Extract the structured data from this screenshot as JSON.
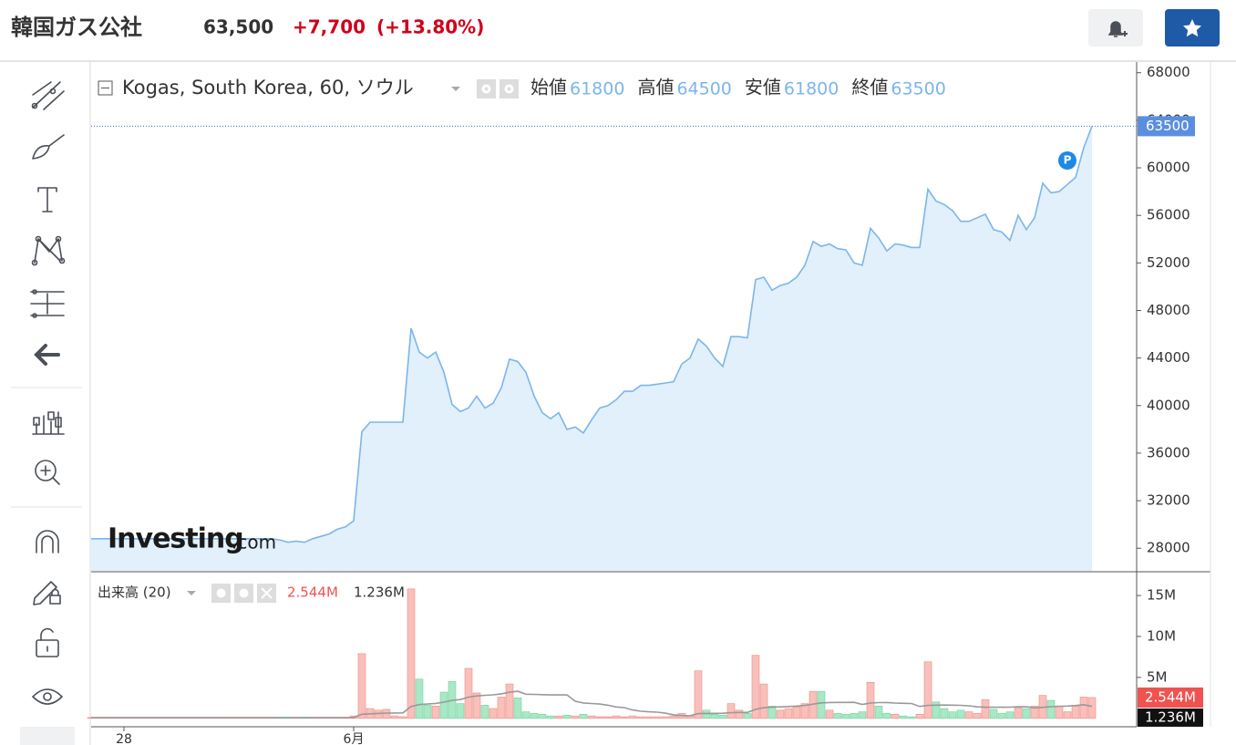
{
  "header": {
    "name": "韓国ガス公社",
    "price": "63,500",
    "change": "+7,700",
    "change_pct": "(+13.80%)"
  },
  "watermark": {
    "brand": "Investing",
    "suffix": ".com"
  },
  "chart_data": {
    "type": "area",
    "title": "Kogas, South Korea, 60, ソウル",
    "ohlc": [
      {
        "label": "始値",
        "value": 61800
      },
      {
        "label": "高値",
        "value": 64500
      },
      {
        "label": "安値",
        "value": 61800
      },
      {
        "label": "終値",
        "value": 63500
      }
    ],
    "marker_label": "P",
    "color": "#7cb5ec",
    "fill": "#e1f0fa",
    "categories": [
      null,
      null,
      null,
      null,
      "28",
      null,
      null,
      null,
      null,
      null,
      null,
      null,
      null,
      null,
      null,
      null,
      null,
      null,
      null,
      null,
      null,
      null,
      null,
      null,
      null,
      null,
      null,
      null,
      null,
      null,
      null,
      null,
      "6月",
      null,
      null,
      null,
      null,
      null,
      null,
      null,
      null,
      null,
      null,
      null,
      null,
      null,
      null,
      null,
      null,
      null,
      null,
      null,
      null,
      null,
      null,
      null,
      null,
      null,
      null,
      null,
      null,
      null,
      null,
      null,
      null,
      null,
      null,
      null,
      null,
      null,
      null,
      null,
      null,
      null,
      null,
      null,
      null,
      null,
      null,
      null,
      null,
      null,
      null,
      null,
      null,
      null,
      null,
      null,
      null,
      null,
      null,
      null,
      null,
      null,
      null,
      null,
      null,
      null,
      null,
      null,
      null,
      null,
      null,
      null,
      null,
      null,
      null,
      null,
      null,
      null,
      null,
      null,
      null,
      null,
      null,
      null,
      null,
      null,
      null,
      null,
      null,
      null,
      null
    ],
    "values": [
      28800,
      28800,
      28800,
      28800,
      28800,
      28800,
      28800,
      28800,
      28800,
      28800,
      28800,
      28800,
      28800,
      28800,
      28800,
      28800,
      28800,
      28800,
      28800,
      28800,
      28800,
      28800,
      28800,
      28700,
      28500,
      28600,
      28500,
      28800,
      29000,
      29200,
      29600,
      29800,
      30300,
      37800,
      38600,
      38600,
      38600,
      38600,
      38600,
      46500,
      44500,
      44000,
      44500,
      42800,
      40100,
      39500,
      39800,
      40800,
      39800,
      40200,
      41500,
      43900,
      43700,
      42800,
      40800,
      39400,
      38900,
      39400,
      38000,
      38200,
      37700,
      38800,
      39800,
      40000,
      40500,
      41200,
      41200,
      41700,
      41700,
      41800,
      41900,
      42000,
      43500,
      44000,
      45600,
      45000,
      44000,
      43300,
      45800,
      45800,
      45700,
      50600,
      50800,
      49700,
      50100,
      50300,
      50800,
      51800,
      53800,
      53400,
      53600,
      53200,
      53100,
      52000,
      51800,
      54900,
      54100,
      53000,
      53600,
      53500,
      53300,
      53300,
      58200,
      57200,
      56900,
      56400,
      55500,
      55500,
      55800,
      56100,
      54800,
      54600,
      53900,
      56000,
      54800,
      55800,
      58700,
      57900,
      58000,
      58600,
      59200,
      61700,
      63500
    ],
    "ylim": [
      26100,
      68900
    ],
    "yticks": [
      28000,
      32000,
      36000,
      40000,
      44000,
      48000,
      52000,
      56000,
      60000,
      64000,
      68000
    ],
    "volume": {
      "type": "bar",
      "title": "出来高 (20)",
      "up_color": "#f9c0bb",
      "down_color": "#a9e8c6",
      "ma_color": "#999999",
      "values": [
        0.1,
        0.1,
        0.1,
        0.1,
        0.1,
        0.1,
        0.1,
        0.1,
        0.1,
        0.1,
        0.1,
        0.1,
        0.1,
        0.1,
        0.1,
        0.1,
        0.1,
        0.1,
        0.1,
        0.1,
        0.1,
        0.1,
        0.1,
        0.1,
        0.1,
        0.1,
        0.1,
        0.1,
        0.1,
        0.1,
        0.1,
        0.1,
        0.3,
        7.9,
        1.2,
        1.0,
        1.1,
        0.3,
        0.2,
        15.8,
        4.8,
        1.6,
        1.5,
        3.2,
        4.5,
        1.8,
        6.1,
        3.1,
        1.6,
        1.2,
        2.6,
        4.2,
        2.5,
        0.8,
        0.6,
        0.5,
        0.3,
        0.3,
        0.4,
        0.3,
        0.5,
        0.3,
        0.2,
        0.2,
        0.3,
        0.2,
        0.3,
        0.2,
        0.2,
        0.2,
        0.2,
        0.3,
        0.6,
        0.3,
        5.8,
        1.0,
        0.5,
        0.4,
        1.8,
        1.0,
        0.6,
        7.7,
        4.2,
        1.5,
        1.0,
        1.2,
        1.4,
        1.8,
        3.3,
        3.3,
        1.0,
        0.6,
        0.5,
        0.6,
        0.8,
        4.4,
        1.5,
        0.6,
        0.5,
        0.3,
        0.2,
        0.5,
        6.9,
        2.0,
        1.2,
        0.8,
        1.0,
        0.8,
        0.6,
        2.3,
        1.1,
        0.6,
        0.8,
        1.3,
        1.2,
        1.5,
        2.8,
        2.2,
        1.5,
        0.8,
        1.5,
        2.6,
        2.544
      ],
      "last": {
        "value": 2.544,
        "label": "2.544M"
      },
      "ma_last": {
        "value": 1.236,
        "label": "1.236M"
      },
      "ylim": [
        -0.8,
        17.9
      ],
      "yticks": [
        {
          "value": 5,
          "label": "5M"
        },
        {
          "value": 10,
          "label": "10M"
        },
        {
          "value": 15,
          "label": "15M"
        }
      ]
    }
  }
}
